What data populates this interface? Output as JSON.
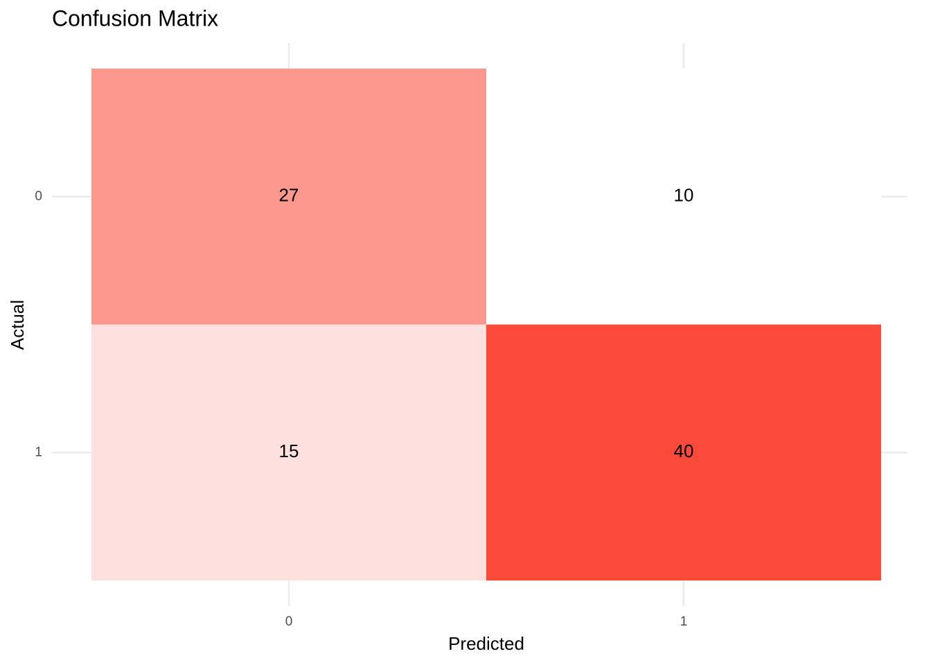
{
  "chart_data": {
    "type": "heatmap",
    "title": "Confusion Matrix",
    "x_label": "Predicted",
    "y_label": "Actual",
    "x": [
      "0",
      "1"
    ],
    "y": [
      "0",
      "1"
    ],
    "values": [
      [
        27,
        10
      ],
      [
        15,
        40
      ]
    ],
    "color_low": "#ffffff",
    "color_high": "#fb4a3a",
    "grid": true
  }
}
